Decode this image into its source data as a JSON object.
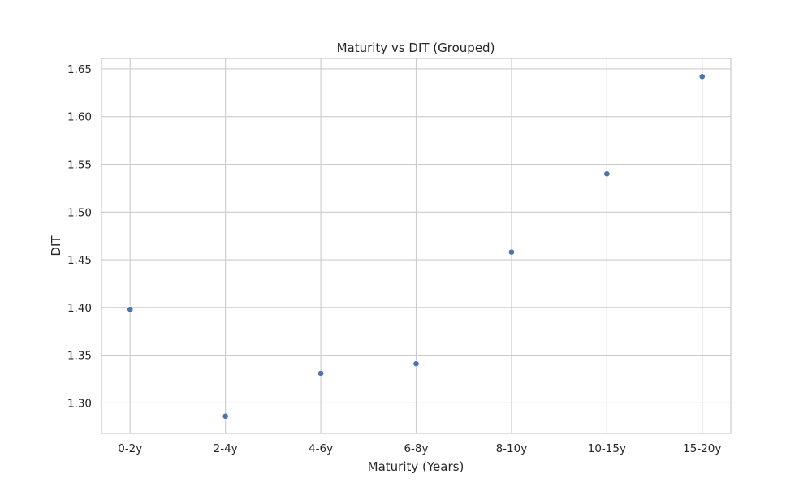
{
  "chart_data": {
    "type": "scatter",
    "title": "Maturity vs DIT (Grouped)",
    "xlabel": "Maturity (Years)",
    "ylabel": "DIT",
    "categories": [
      "0-2y",
      "2-4y",
      "4-6y",
      "6-8y",
      "8-10y",
      "10-15y",
      "15-20y"
    ],
    "values": [
      1.398,
      1.286,
      1.331,
      1.341,
      1.458,
      1.54,
      1.642
    ],
    "ylim": [
      1.268,
      1.661
    ],
    "yticks": [
      "1.30",
      "1.35",
      "1.40",
      "1.45",
      "1.50",
      "1.55",
      "1.60",
      "1.65"
    ],
    "grid": true,
    "colors": {
      "marker": "#4c72b0",
      "grid": "#cccccc",
      "spine": "#cccccc",
      "text": "#262626"
    }
  }
}
